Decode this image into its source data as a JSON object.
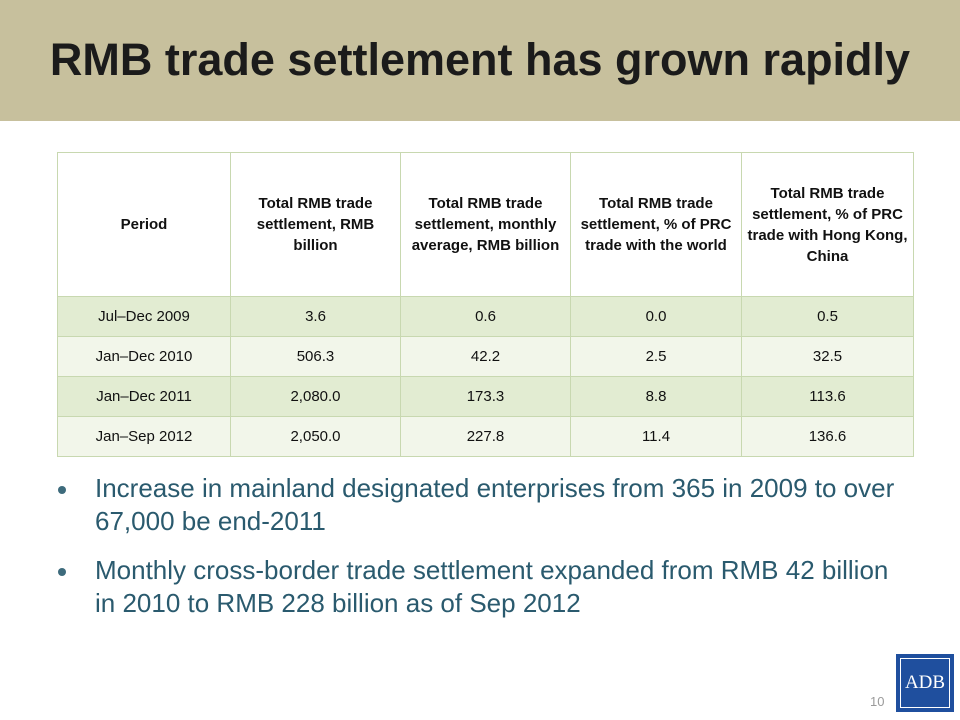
{
  "slide": {
    "title": "RMB trade settlement has grown rapidly",
    "page_number": "10",
    "logo_text": "ADB"
  },
  "table": {
    "headers": [
      "Period",
      "Total RMB trade settlement, RMB billion",
      "Total RMB trade settlement, monthly average, RMB billion",
      "Total RMB trade settlement, % of PRC trade with the world",
      "Total RMB trade settlement, % of PRC trade with Hong Kong, China"
    ],
    "rows": [
      [
        "Jul–Dec 2009",
        "3.6",
        "0.6",
        "0.0",
        "0.5"
      ],
      [
        "Jan–Dec 2010",
        "506.3",
        "42.2",
        "2.5",
        "32.5"
      ],
      [
        "Jan–Dec 2011",
        "2,080.0",
        "173.3",
        "8.8",
        "113.6"
      ],
      [
        "Jan–Sep 2012",
        "2,050.0",
        "227.8",
        "11.4",
        "136.6"
      ]
    ]
  },
  "bullets": [
    "Increase in mainland designated enterprises from 365 in 2009 to over 67,000 be end-2011",
    "Monthly cross-border trade settlement expanded from RMB 42 billion in 2010 to RMB 228 billion as of Sep 2012"
  ],
  "colors": {
    "title_band": "#c7c09d",
    "row_dark": "#e2ecd2",
    "row_light": "#f2f6ea",
    "bullet_text": "#2a5a6e",
    "logo_bg": "#1f4f9e"
  }
}
